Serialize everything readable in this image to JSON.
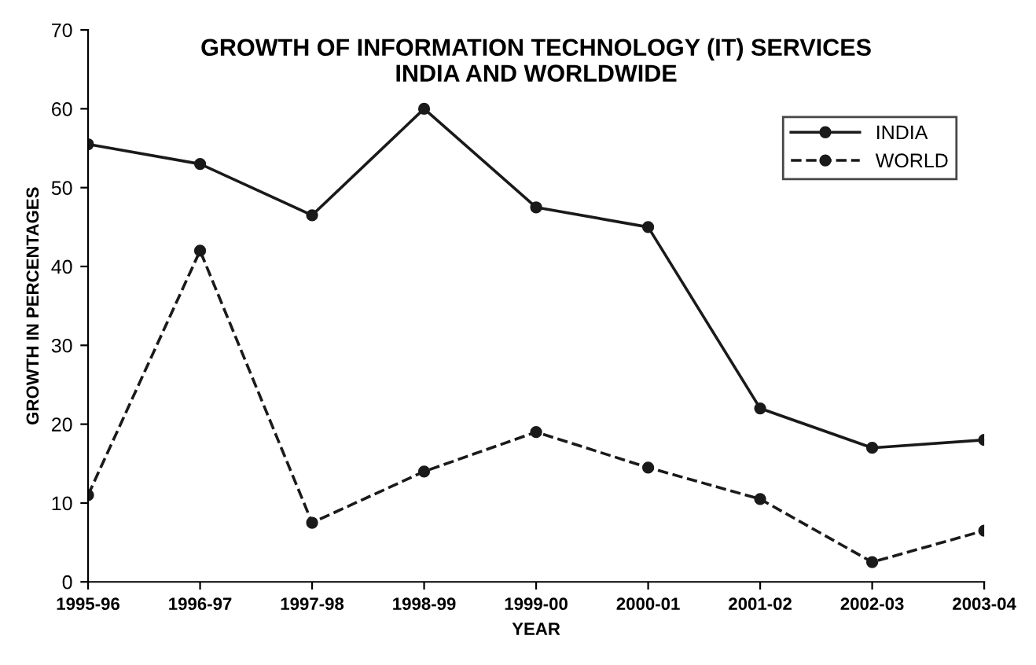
{
  "chart_data": {
    "type": "line",
    "title": "GROWTH OF INFORMATION TECHNOLOGY (IT) SERVICES\nINDIA AND WORLDWIDE",
    "xlabel": "YEAR",
    "ylabel": "GROWTH IN PERCENTAGES",
    "categories": [
      "1995-96",
      "1996-97",
      "1997-98",
      "1998-99",
      "1999-00",
      "2000-01",
      "2001-02",
      "2002-03",
      "2003-04"
    ],
    "series": [
      {
        "name": "INDIA",
        "color": "#1a1a1a",
        "line_style": "solid",
        "values": [
          55.5,
          53,
          46.5,
          60,
          47.5,
          45,
          22,
          17,
          18
        ]
      },
      {
        "name": "WORLD",
        "color": "#1a1a1a",
        "line_style": "dashed",
        "values": [
          11,
          42,
          7.5,
          14,
          19,
          14.5,
          10.5,
          2.5,
          6.5
        ]
      }
    ],
    "ylim": [
      0,
      70
    ],
    "yticks": [
      0,
      10,
      20,
      30,
      40,
      50,
      60,
      70
    ],
    "grid": false,
    "legend": "top right",
    "marker": "circle"
  }
}
